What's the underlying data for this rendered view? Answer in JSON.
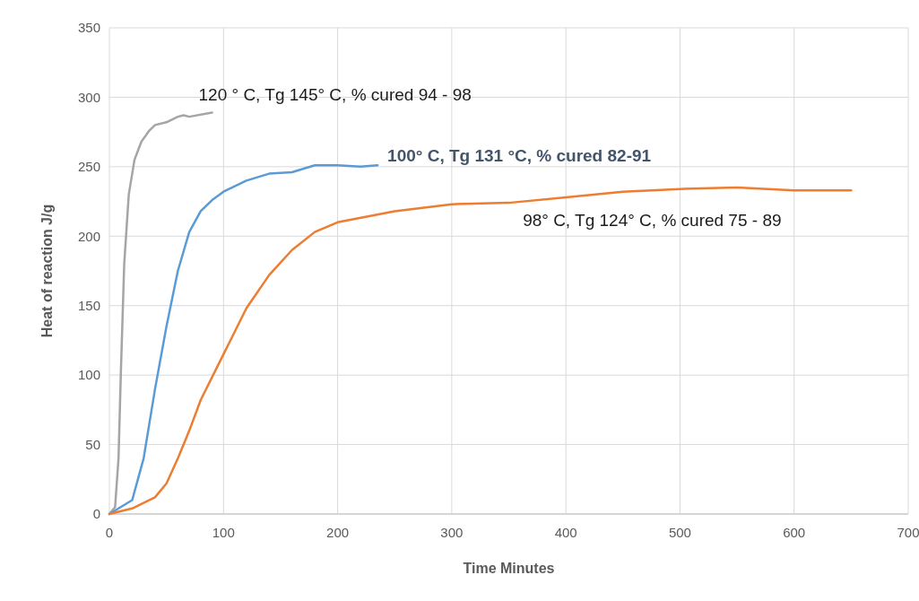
{
  "chart_data": {
    "type": "line",
    "xlabel": "Time Minutes",
    "ylabel": "Heat of reaction J/g",
    "xlim": [
      0,
      700
    ],
    "xticks": [
      0,
      100,
      200,
      300,
      400,
      500,
      600,
      700
    ],
    "ylim": [
      0,
      350
    ],
    "yticks": [
      0,
      50,
      100,
      150,
      200,
      250,
      300,
      350
    ],
    "grid": true,
    "line_style": "solid",
    "marker": "none",
    "series": [
      {
        "color": "#a5a5a5",
        "x": [
          0,
          5,
          8,
          10,
          13,
          17,
          22,
          28,
          35,
          40,
          50,
          60,
          65,
          70,
          90
        ],
        "values": [
          0,
          5,
          40,
          100,
          180,
          230,
          255,
          268,
          276,
          280,
          282,
          286,
          287,
          286,
          289
        ]
      },
      {
        "color": "#5b9bd5",
        "x": [
          0,
          20,
          30,
          40,
          50,
          60,
          70,
          80,
          90,
          100,
          120,
          140,
          160,
          180,
          200,
          220,
          235
        ],
        "values": [
          0,
          10,
          40,
          90,
          135,
          175,
          203,
          218,
          226,
          232,
          240,
          245,
          246,
          251,
          251,
          250,
          251
        ]
      },
      {
        "color": "#ed7d31",
        "x": [
          0,
          20,
          40,
          50,
          60,
          70,
          80,
          100,
          120,
          140,
          160,
          180,
          200,
          250,
          300,
          350,
          400,
          450,
          500,
          550,
          600,
          650
        ],
        "values": [
          0,
          4,
          12,
          22,
          40,
          60,
          82,
          115,
          148,
          172,
          190,
          203,
          210,
          218,
          223,
          224,
          228,
          232,
          234,
          235,
          233,
          233
        ]
      }
    ],
    "annotations": [
      {
        "text": "120 ° C, Tg 145° C, % cured 94 - 98",
        "x": 90,
        "y": 289
      },
      {
        "text": "100° C, Tg 131 °C, % cured 82-91",
        "x": 235,
        "y": 251
      },
      {
        "text": "98° C, Tg 124° C, % cured 75 - 89",
        "x": 400,
        "y": 228
      }
    ]
  }
}
